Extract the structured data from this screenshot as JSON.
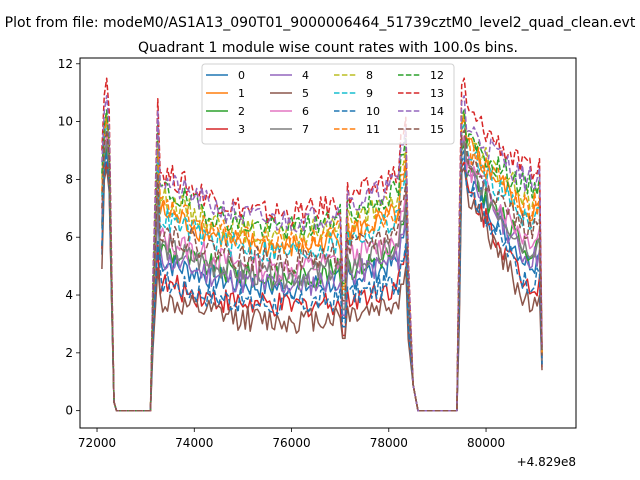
{
  "chart_data": {
    "type": "line",
    "suptitle": "Plot from file: modeM0/AS1A13_090T01_9000006464_51739cztM0_level2_quad_clean.evt",
    "title": "Quadrant 1 module wise count rates with 100.0s bins.",
    "xlabel": "",
    "ylabel": "",
    "offset_label": "+4.829e8",
    "xlim": [
      71650,
      81850
    ],
    "ylim": [
      -0.6,
      12.2
    ],
    "xticks": [
      72000,
      74000,
      76000,
      78000,
      80000
    ],
    "xtick_labels": [
      "72000",
      "74000",
      "76000",
      "78000",
      "80000"
    ],
    "yticks": [
      0,
      2,
      4,
      6,
      8,
      10,
      12
    ],
    "ytick_labels": [
      "0",
      "2",
      "4",
      "6",
      "8",
      "10",
      "12"
    ],
    "legend_position": "upper center",
    "legend_columns": 4,
    "segments": [
      [
        72100,
        72300
      ],
      [
        73200,
        78350
      ],
      [
        79450,
        81150
      ]
    ],
    "gap_zero_x": [
      [
        72400,
        72500,
        72600,
        72700,
        72800,
        72900,
        73000,
        73100
      ],
      [
        78600,
        78700,
        78800,
        78900,
        79000,
        79100,
        79200,
        79300,
        79400
      ]
    ],
    "series": [
      {
        "name": "0",
        "color": "#1f77b4",
        "dash": "solid",
        "level": 5.2,
        "peak": 9.0,
        "dip": 3.2,
        "start": 3.4,
        "end": 1.6
      },
      {
        "name": "1",
        "color": "#ff7f0e",
        "dash": "solid",
        "level": 6.9,
        "peak": 10.2,
        "dip": 4.0,
        "start": 5.5,
        "end": 1.9
      },
      {
        "name": "2",
        "color": "#2ca02c",
        "dash": "solid",
        "level": 5.6,
        "peak": 9.2,
        "dip": 3.5,
        "start": 4.4,
        "end": 1.8
      },
      {
        "name": "3",
        "color": "#d62728",
        "dash": "solid",
        "level": 4.4,
        "peak": 8.6,
        "dip": 2.6,
        "start": 3.6,
        "end": 1.5
      },
      {
        "name": "4",
        "color": "#9467bd",
        "dash": "solid",
        "level": 5.3,
        "peak": 9.4,
        "dip": 3.3,
        "start": 4.5,
        "end": 1.7
      },
      {
        "name": "5",
        "color": "#8c564b",
        "dash": "solid",
        "level": 3.8,
        "peak": 8.4,
        "dip": 2.5,
        "start": 2.9,
        "end": 1.4
      },
      {
        "name": "6",
        "color": "#e377c2",
        "dash": "solid",
        "level": 6.0,
        "peak": 9.5,
        "dip": 3.7,
        "start": 4.8,
        "end": 1.8
      },
      {
        "name": "7",
        "color": "#7f7f7f",
        "dash": "solid",
        "level": 5.7,
        "peak": 9.3,
        "dip": 3.5,
        "start": 4.3,
        "end": 1.7
      },
      {
        "name": "8",
        "color": "#bcbd22",
        "dash": "dashed",
        "level": 7.4,
        "peak": 10.3,
        "dip": 4.3,
        "start": 6.0,
        "end": 2.0
      },
      {
        "name": "9",
        "color": "#17becf",
        "dash": "dashed",
        "level": 6.7,
        "peak": 9.9,
        "dip": 4.0,
        "start": 5.4,
        "end": 1.9
      },
      {
        "name": "10",
        "color": "#1f77b4",
        "dash": "dashed",
        "level": 4.5,
        "peak": 8.8,
        "dip": 2.9,
        "start": 3.7,
        "end": 1.6
      },
      {
        "name": "11",
        "color": "#ff7f0e",
        "dash": "dashed",
        "level": 7.1,
        "peak": 10.1,
        "dip": 4.2,
        "start": 5.6,
        "end": 2.0
      },
      {
        "name": "12",
        "color": "#2ca02c",
        "dash": "dashed",
        "level": 7.7,
        "peak": 10.4,
        "dip": 4.4,
        "start": 6.2,
        "end": 2.1
      },
      {
        "name": "13",
        "color": "#d62728",
        "dash": "dashed",
        "level": 8.3,
        "peak": 11.5,
        "dip": 4.6,
        "start": 7.0,
        "end": 2.2
      },
      {
        "name": "14",
        "color": "#9467bd",
        "dash": "dashed",
        "level": 8.0,
        "peak": 10.9,
        "dip": 4.5,
        "start": 6.6,
        "end": 2.1
      },
      {
        "name": "15",
        "color": "#8c564b",
        "dash": "dashed",
        "level": 6.3,
        "peak": 9.7,
        "dip": 3.8,
        "start": 5.0,
        "end": 1.9
      }
    ]
  }
}
